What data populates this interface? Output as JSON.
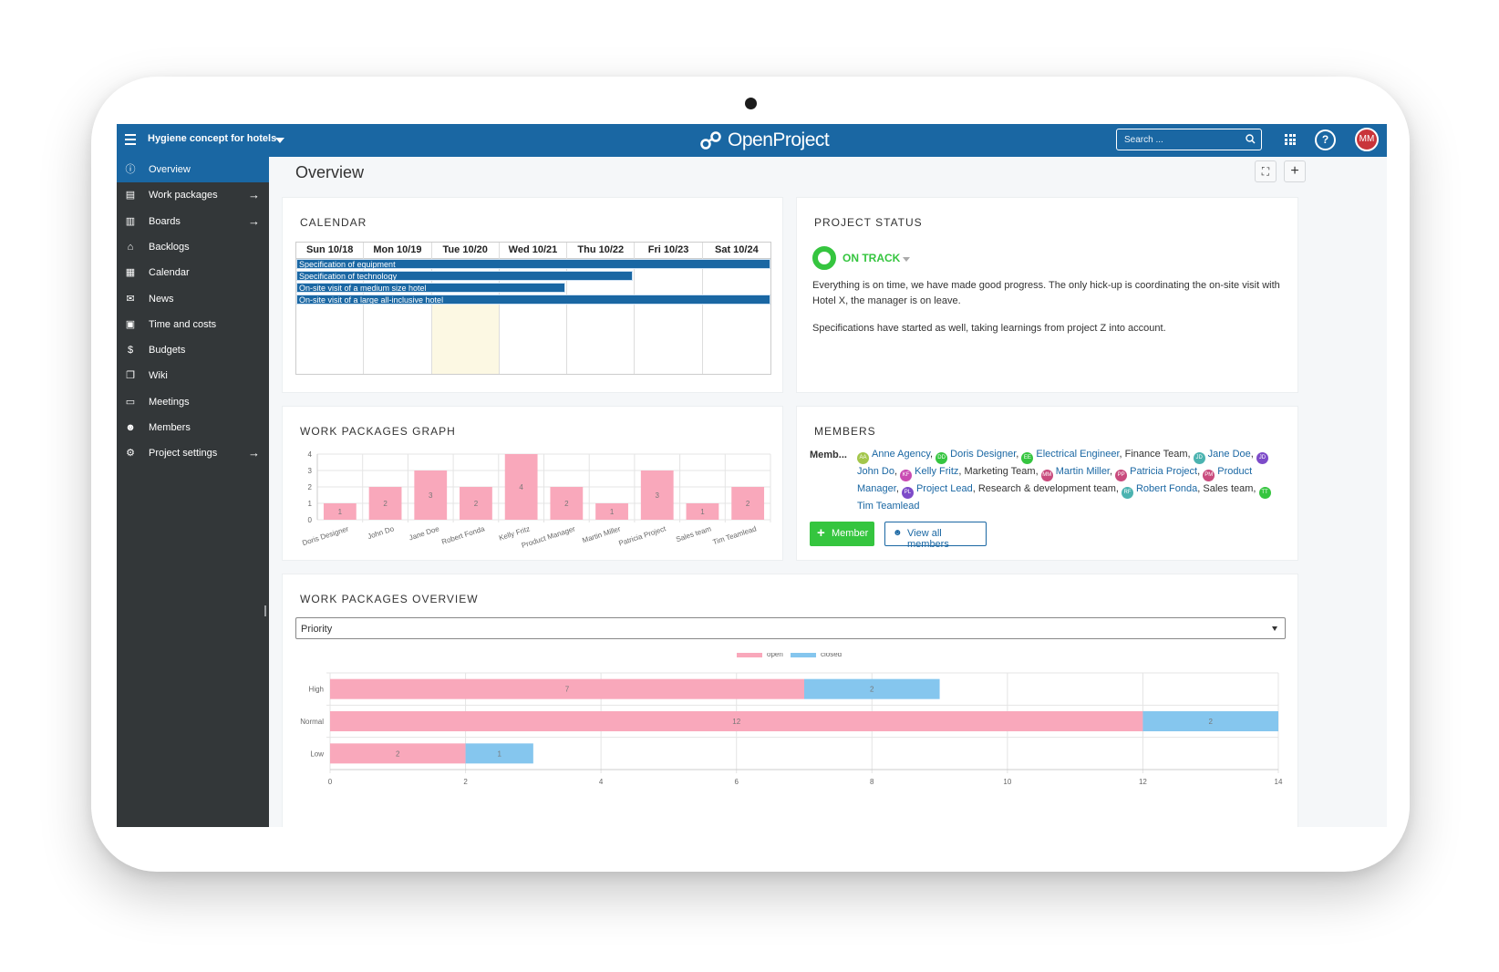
{
  "header": {
    "project_name": "Hygiene concept for hotels",
    "logo_text": "OpenProject",
    "search_placeholder": "Search ...",
    "help_glyph": "?",
    "user_initials": "MM"
  },
  "sidebar": {
    "items": [
      {
        "label": "Overview",
        "icon": "info-icon",
        "glyph": "ⓘ",
        "active": true,
        "arrow": false
      },
      {
        "label": "Work packages",
        "icon": "work-packages-icon",
        "glyph": "▤",
        "active": false,
        "arrow": true
      },
      {
        "label": "Boards",
        "icon": "boards-icon",
        "glyph": "▥",
        "active": false,
        "arrow": true
      },
      {
        "label": "Backlogs",
        "icon": "backlogs-icon",
        "glyph": "⌂",
        "active": false,
        "arrow": false
      },
      {
        "label": "Calendar",
        "icon": "calendar-icon",
        "glyph": "▦",
        "active": false,
        "arrow": false
      },
      {
        "label": "News",
        "icon": "news-icon",
        "glyph": "✉",
        "active": false,
        "arrow": false
      },
      {
        "label": "Time and costs",
        "icon": "time-costs-icon",
        "glyph": "▣",
        "active": false,
        "arrow": false
      },
      {
        "label": "Budgets",
        "icon": "budgets-icon",
        "glyph": "$",
        "active": false,
        "arrow": false
      },
      {
        "label": "Wiki",
        "icon": "wiki-icon",
        "glyph": "❐",
        "active": false,
        "arrow": false
      },
      {
        "label": "Meetings",
        "icon": "meetings-icon",
        "glyph": "▭",
        "active": false,
        "arrow": false
      },
      {
        "label": "Members",
        "icon": "members-icon",
        "glyph": "☻",
        "active": false,
        "arrow": false
      },
      {
        "label": "Project settings",
        "icon": "settings-icon",
        "glyph": "⚙",
        "active": false,
        "arrow": true
      }
    ],
    "arrow_glyph": "→"
  },
  "page": {
    "title": "Overview",
    "fullscreen_glyph": "⛶",
    "add_glyph": "+"
  },
  "calendar": {
    "title": "CALENDAR",
    "days": [
      "Sun 10/18",
      "Mon 10/19",
      "Tue 10/20",
      "Wed 10/21",
      "Thu 10/22",
      "Fri 10/23",
      "Sat 10/24"
    ],
    "events": [
      {
        "label": "Specification of equipment",
        "start_day": 0,
        "end_day": 7
      },
      {
        "label": "Specification of technology",
        "start_day": 0,
        "end_day": 5
      },
      {
        "label": "On-site visit of a medium size hotel",
        "start_day": 0,
        "end_day": 4
      },
      {
        "label": "On-site visit of a large all-inclusive hotel",
        "start_day": 0,
        "end_day": 7
      }
    ],
    "highlight_day": 2
  },
  "project_status": {
    "title": "PROJECT STATUS",
    "status": "ON TRACK",
    "status_color": "#35c53f",
    "paragraphs": [
      "Everything is on time, we have made good progress. The only hick-up is coordinating the on-site visit with Hotel X, the manager is on leave.",
      "Specifications have started as well, taking learnings from project Z into account."
    ]
  },
  "members": {
    "title": "MEMBERS",
    "role_label": "Memb...",
    "add_button": "Member",
    "view_all_button": "View all members",
    "list": [
      {
        "initials": "AA",
        "name": "Anne Agency",
        "color": "#a3c64b",
        "link": true
      },
      {
        "initials": "DD",
        "name": "Doris Designer",
        "color": "#35c53f",
        "link": true
      },
      {
        "initials": "EE",
        "name": "Electrical Engineer",
        "color": "#35c53f",
        "link": true
      },
      {
        "initials": "",
        "name": "Finance Team",
        "color": "",
        "link": false
      },
      {
        "initials": "JD",
        "name": "Jane Doe",
        "color": "#4bb3b0",
        "link": true
      },
      {
        "initials": "JD",
        "name": "John Do",
        "color": "#7d4bc9",
        "link": true
      },
      {
        "initials": "KF",
        "name": "Kelly Fritz",
        "color": "#c94bb2",
        "link": true
      },
      {
        "initials": "",
        "name": "Marketing Team",
        "color": "",
        "link": false
      },
      {
        "initials": "MM",
        "name": "Martin Miller",
        "color": "#c94b7d",
        "link": true
      },
      {
        "initials": "PP",
        "name": "Patricia Project",
        "color": "#c94b7d",
        "link": true
      },
      {
        "initials": "PM",
        "name": "Product Manager",
        "color": "#c94b7d",
        "link": true
      },
      {
        "initials": "PL",
        "name": "Project Lead",
        "color": "#7d4bc9",
        "link": true
      },
      {
        "initials": "",
        "name": "Research & development team",
        "color": "",
        "link": false
      },
      {
        "initials": "RF",
        "name": "Robert Fonda",
        "color": "#4bb3b0",
        "link": true
      },
      {
        "initials": "",
        "name": "Sales team",
        "color": "",
        "link": false
      },
      {
        "initials": "TT",
        "name": "Tim Teamlead",
        "color": "#35c53f",
        "link": true
      }
    ]
  },
  "wp_graph": {
    "title": "WORK PACKAGES GRAPH"
  },
  "wp_overview": {
    "title": "WORK PACKAGES OVERVIEW",
    "select_value": "Priority"
  },
  "chart_data": [
    {
      "type": "bar",
      "categories": [
        "Doris Designer",
        "John Do",
        "Jane Doe",
        "Robert Fonda",
        "Kelly Fritz",
        "Product Manager",
        "Martin Miller",
        "Patricia Project",
        "Sales team",
        "Tim Teamlead"
      ],
      "values": [
        1,
        2,
        3,
        2,
        4,
        2,
        1,
        3,
        1,
        2
      ],
      "ylim": [
        0,
        4
      ],
      "yticks": [
        0,
        1,
        2,
        3,
        4
      ],
      "color": "#f9a8bb",
      "grid": true
    },
    {
      "type": "bar",
      "orientation": "horizontal",
      "stacked": true,
      "categories": [
        "High",
        "Normal",
        "Low"
      ],
      "series": [
        {
          "name": "open",
          "values": [
            7,
            12,
            2
          ],
          "color": "#f9a8bb"
        },
        {
          "name": "closed",
          "values": [
            2,
            2,
            1
          ],
          "color": "#85c6ee"
        }
      ],
      "xlim": [
        0,
        14
      ],
      "xticks": [
        0,
        2,
        4,
        6,
        8,
        10,
        12,
        14
      ],
      "legend": "top-center",
      "grid": true
    }
  ]
}
